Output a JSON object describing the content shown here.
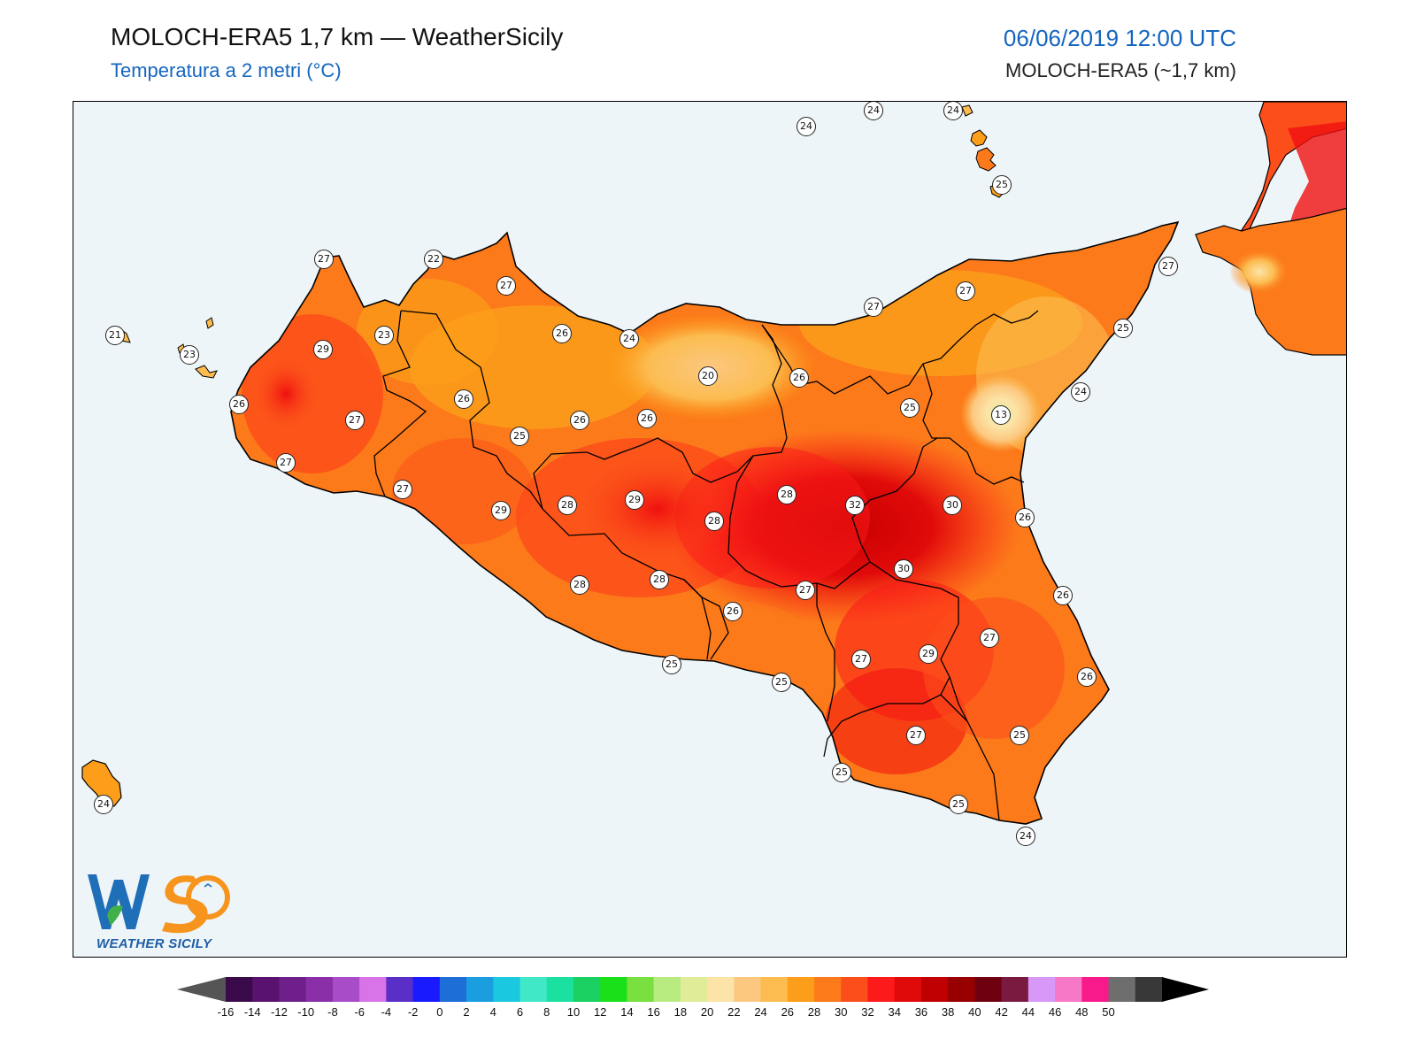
{
  "header": {
    "title": "MOLOCH-ERA5 1,7 km — WeatherSicily",
    "subtitle": "Temperatura a 2 metri (°C)",
    "date": "06/06/2019 12:00 UTC",
    "model": "MOLOCH-ERA5 (~1,7 km)"
  },
  "logo": {
    "text": "WEATHER SICILY",
    "letters": "WS"
  },
  "stations": [
    {
      "v": "24"
    },
    {
      "v": "24"
    },
    {
      "v": "24"
    },
    {
      "v": "25"
    },
    {
      "v": "27"
    },
    {
      "v": "22"
    },
    {
      "v": "27"
    },
    {
      "v": "27"
    },
    {
      "v": "21"
    },
    {
      "v": "23"
    },
    {
      "v": "23"
    },
    {
      "v": "29"
    },
    {
      "v": "26"
    },
    {
      "v": "24"
    },
    {
      "v": "20"
    },
    {
      "v": "26"
    },
    {
      "v": "25"
    },
    {
      "v": "27"
    },
    {
      "v": "27"
    },
    {
      "v": "25"
    },
    {
      "v": "24"
    },
    {
      "v": "13"
    },
    {
      "v": "26"
    },
    {
      "v": "27"
    },
    {
      "v": "26"
    },
    {
      "v": "26"
    },
    {
      "v": "26"
    },
    {
      "v": "25"
    },
    {
      "v": "27"
    },
    {
      "v": "27"
    },
    {
      "v": "29"
    },
    {
      "v": "28"
    },
    {
      "v": "29"
    },
    {
      "v": "28"
    },
    {
      "v": "28"
    },
    {
      "v": "32"
    },
    {
      "v": "30"
    },
    {
      "v": "26"
    },
    {
      "v": "30"
    },
    {
      "v": "26"
    },
    {
      "v": "28"
    },
    {
      "v": "28"
    },
    {
      "v": "27"
    },
    {
      "v": "26"
    },
    {
      "v": "27"
    },
    {
      "v": "27"
    },
    {
      "v": "29"
    },
    {
      "v": "25"
    },
    {
      "v": "25"
    },
    {
      "v": "26"
    },
    {
      "v": "27"
    },
    {
      "v": "25"
    },
    {
      "v": "25"
    },
    {
      "v": "25"
    },
    {
      "v": "24"
    },
    {
      "v": "24"
    }
  ],
  "colorbar": {
    "ticks": [
      "-16",
      "-14",
      "-12",
      "-10",
      "-8",
      "-6",
      "-4",
      "-2",
      "0",
      "2",
      "4",
      "6",
      "8",
      "10",
      "12",
      "14",
      "16",
      "18",
      "20",
      "22",
      "24",
      "26",
      "28",
      "30",
      "32",
      "34",
      "36",
      "38",
      "40",
      "42",
      "44",
      "46",
      "48",
      "50"
    ],
    "colors": [
      "#3a0a4a",
      "#5a1270",
      "#6e1f8a",
      "#8a2fa8",
      "#a84cc8",
      "#d874e8",
      "#5a2fc8",
      "#1a1aff",
      "#1e6ed8",
      "#1a9ee0",
      "#1ac8e0",
      "#40e8c8",
      "#1ae0a0",
      "#1ad060",
      "#1ae01a",
      "#7ae040",
      "#b8ec80",
      "#e0ec98",
      "#fce4a8",
      "#fcc880",
      "#fcbc50",
      "#fc9e1a",
      "#fc7a1a",
      "#fc4e1a",
      "#fc1a1a",
      "#e00a0a",
      "#c00000",
      "#980000",
      "#6e0010",
      "#7a1a40",
      "#d898f8",
      "#f878c8",
      "#f81a8a",
      "#6e6e6e",
      "#383838"
    ],
    "under_color": "#555555",
    "over_color": "#000000"
  }
}
